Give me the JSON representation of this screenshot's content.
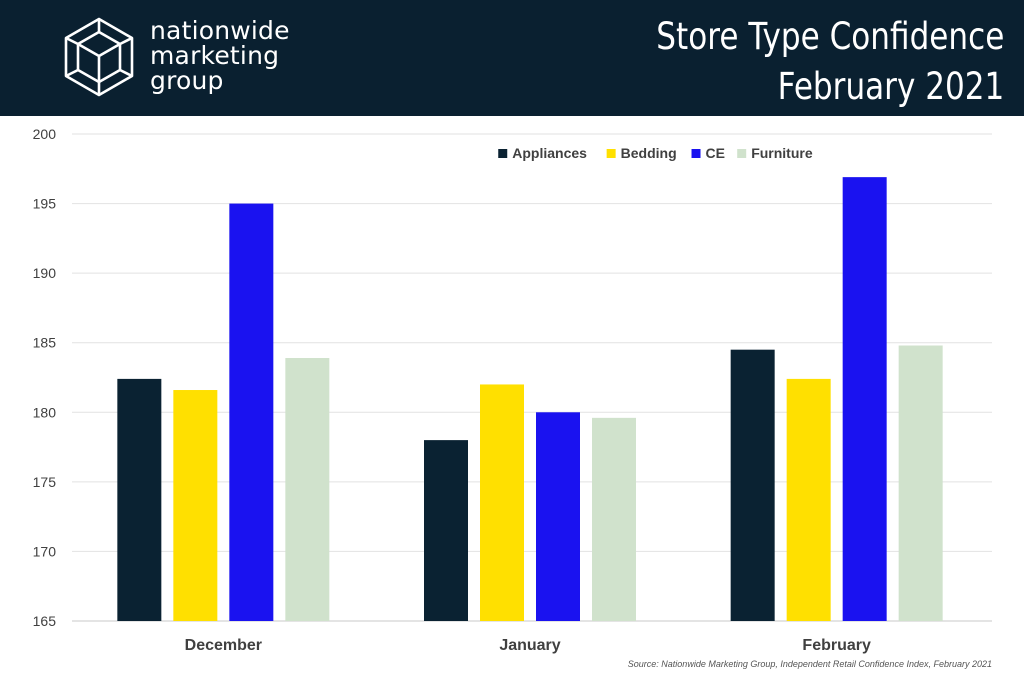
{
  "header": {
    "logo_lines": [
      "nationwide",
      "marketing",
      "group"
    ],
    "title_lines": [
      "Store Type Confidence",
      "February 2021"
    ]
  },
  "chart_data": {
    "type": "bar",
    "categories": [
      "December",
      "January",
      "February"
    ],
    "series": [
      {
        "name": "Appliances",
        "color": "#0a2232",
        "values": [
          182.4,
          178.0,
          184.5
        ]
      },
      {
        "name": "Bedding",
        "color": "#ffe000",
        "values": [
          181.6,
          182.0,
          182.4
        ]
      },
      {
        "name": "CE",
        "color": "#1a12f0",
        "values": [
          195.0,
          180.0,
          196.9
        ]
      },
      {
        "name": "Furniture",
        "color": "#d0e2cc",
        "values": [
          183.9,
          179.6,
          184.8
        ]
      }
    ],
    "ylim": [
      165,
      200
    ],
    "yticks": [
      165,
      170,
      175,
      180,
      185,
      190,
      195,
      200
    ],
    "grid": true,
    "legend_position": "top-center"
  },
  "footer": {
    "source": "Source: Nationwide Marketing Group, Independent Retail Confidence Index, February 2021"
  }
}
